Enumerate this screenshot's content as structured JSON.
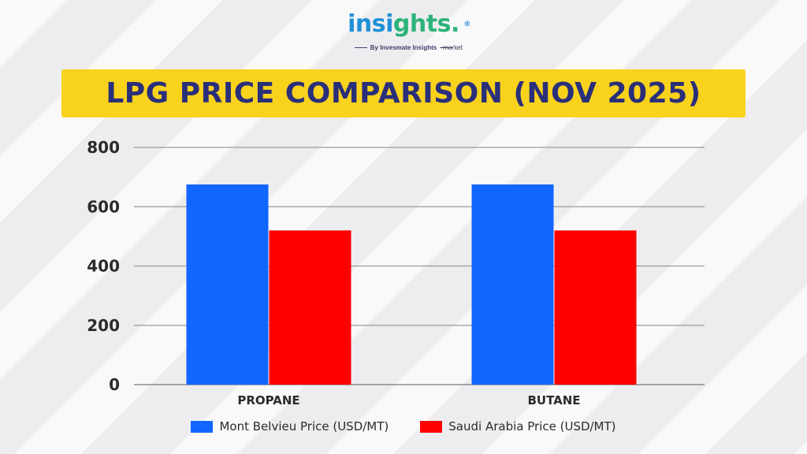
{
  "brand": {
    "logo_part1": "insi",
    "logo_part2": "ghts",
    "logo_dot": ".",
    "logo_sub": "market",
    "logo_reg": "®",
    "tagline": "By Invesmate Insights"
  },
  "colors": {
    "banner": "#f9d21c",
    "title_text": "#2a2f7a",
    "series_1": "#1166ff",
    "series_2": "#ff0000"
  },
  "chart_data": {
    "type": "bar",
    "title": "LPG PRICE COMPARISON (NOV 2025)",
    "categories": [
      "PROPANE",
      "BUTANE"
    ],
    "series": [
      {
        "name": "Mont Belvieu Price (USD/MT)",
        "color": "#1166ff",
        "values": [
          675,
          675
        ]
      },
      {
        "name": "Saudi Arabia Price (USD/MT)",
        "color": "#ff0000",
        "values": [
          520,
          520
        ]
      }
    ],
    "ylim": [
      0,
      800
    ],
    "yticks": [
      "0",
      "200",
      "400",
      "600",
      "800"
    ],
    "grid": true,
    "legend": "bottom"
  }
}
